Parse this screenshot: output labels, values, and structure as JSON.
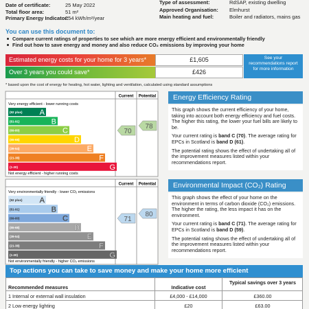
{
  "details": {
    "left": [
      {
        "label": "Date of certificate:",
        "value": "25 May 2022"
      },
      {
        "label": "Total floor area:",
        "value": "51 m²"
      },
      {
        "label": "Primary Energy Indicator:",
        "value": "254 kWh/m²/year"
      }
    ],
    "right": [
      {
        "label": "Type of assessment:",
        "value": "RdSAP, existing dwelling"
      },
      {
        "label": "Approved Organisation:",
        "value": "Elmhurst"
      },
      {
        "label": "Main heating and fuel:",
        "value": "Boiler and radiators, mains gas"
      }
    ]
  },
  "uses": {
    "heading": "You can use this document to:",
    "bullets": [
      "Compare current ratings of properties to see which are more energy efficient and environmentally friendly",
      "Find out how to save energy and money and also reduce CO₂ emissions by improving your home"
    ]
  },
  "costs": {
    "rows": [
      {
        "label": "Estimated energy costs for your home for 3 years*",
        "value": "£1,605"
      },
      {
        "label": "Over 3 years you could save*",
        "value": "£426"
      }
    ],
    "note": "See your recommendations report for more information",
    "footnote": "* based upon the cost of energy for heating, hot water, lighting and ventilation, calculated using standard assumptions"
  },
  "energy_chart": {
    "headers": [
      "Current",
      "Potential"
    ],
    "top": "Very energy efficient - lower running costs",
    "bottom": "Not energy efficient - higher running costs",
    "bands": [
      {
        "range": "(92 plus)",
        "letter": "A"
      },
      {
        "range": "(81-91)",
        "letter": "B"
      },
      {
        "range": "(69-80)",
        "letter": "C"
      },
      {
        "range": "(55-68)",
        "letter": "D"
      },
      {
        "range": "(39-54)",
        "letter": "E"
      },
      {
        "range": "(21-38)",
        "letter": "F"
      },
      {
        "range": "(1-20)",
        "letter": "G"
      }
    ],
    "current": "70",
    "potential": "78"
  },
  "energy_text": {
    "title": "Energy Efficiency Rating",
    "paragraphs": [
      [
        "This graph shows the current efficiency of your home, taking into account both energy efficiency and fuel costs. The higher this rating, the lower your fuel bills are likely to be."
      ],
      [
        "Your current rating is ",
        "band C (70)",
        ". The average rating for EPCs in Scotland is ",
        "band D (61)",
        "."
      ],
      [
        "The potential rating shows the effect of undertaking all of the improvement measures listed within your recommendations report."
      ]
    ]
  },
  "env_chart": {
    "headers": [
      "Current",
      "Potential"
    ],
    "top": "Very environmentally friendly - lower CO₂ emissions",
    "bottom": "Not environmentally friendly - higher CO₂ emissions",
    "bands": [
      {
        "range": "(92 plus)",
        "letter": "A"
      },
      {
        "range": "(81-91)",
        "letter": "B"
      },
      {
        "range": "(69-80)",
        "letter": "C"
      },
      {
        "range": "(55-68)",
        "letter": "D"
      },
      {
        "range": "(39-54)",
        "letter": "E"
      },
      {
        "range": "(21-38)",
        "letter": "F"
      },
      {
        "range": "(1-20)",
        "letter": "G"
      }
    ],
    "current": "71",
    "potential": "80"
  },
  "env_text": {
    "title": "Environmental Impact (CO₂) Rating",
    "paragraphs": [
      [
        "This graph shows the effect of your home on the environment in terms of carbon dioxide (CO₂) emissions. The higher the rating, the less impact it has on the environment."
      ],
      [
        "Your current rating is ",
        "band C (71)",
        ". The average rating for EPCs in Scotland is ",
        "band D (59)",
        "."
      ],
      [
        "The potential rating shows the effect of undertaking all of the improvement measures listed within your recommendations report."
      ]
    ]
  },
  "actions": {
    "title": "Top actions you can take to save money and make your home more efficient",
    "headers": [
      "Recommended measures",
      "Indicative cost",
      "Typical savings over 3 years"
    ],
    "rows": [
      [
        "1 Internal or external wall insulation",
        "£4,000 - £14,000",
        "£360.00"
      ],
      [
        "2 Low energy lighting",
        "£20",
        "£63.00"
      ]
    ]
  }
}
